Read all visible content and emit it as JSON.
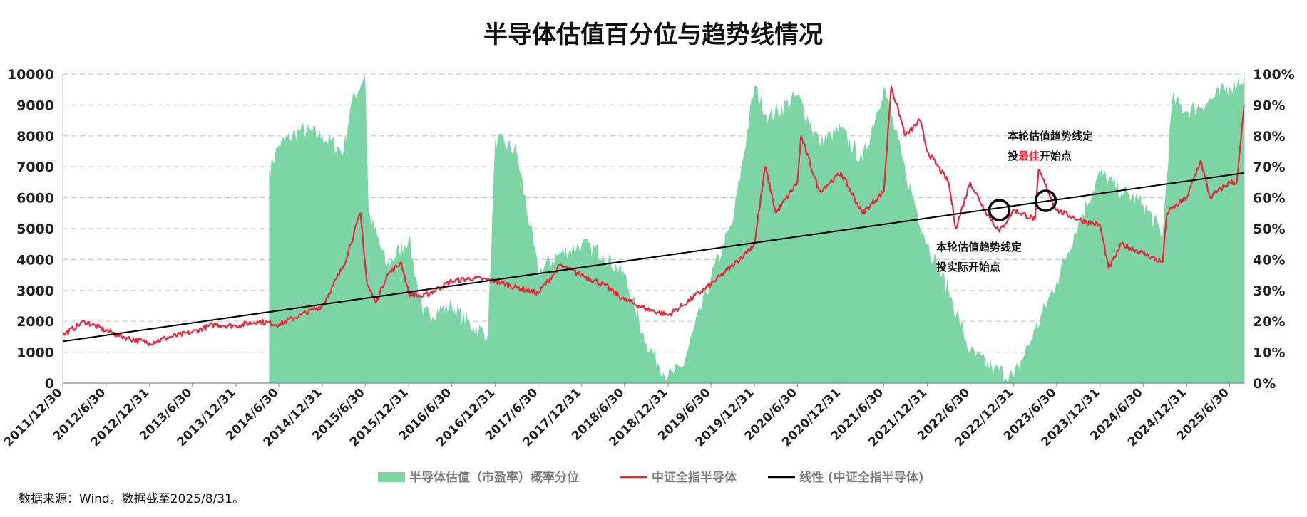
{
  "chart_data": {
    "type": "area",
    "title": "半导体估值百分位与趋势线情况",
    "source": "数据来源：Wind，数据截至2025/8/31。",
    "left_axis": {
      "ylim": [
        0,
        10000
      ],
      "ticks": [
        "0",
        "1000",
        "2000",
        "3000",
        "4000",
        "5000",
        "6000",
        "7000",
        "8000",
        "9000",
        "10000"
      ]
    },
    "right_axis": {
      "ylim": [
        0,
        1
      ],
      "ticks": [
        "0%",
        "10%",
        "20%",
        "30%",
        "40%",
        "50%",
        "60%",
        "70%",
        "80%",
        "90%",
        "100%"
      ]
    },
    "x_range": [
      "2011/12/30",
      "2025/8/31"
    ],
    "x_ticks": [
      "2011/12/30",
      "2012/6/30",
      "2012/12/31",
      "2013/6/30",
      "2013/12/31",
      "2014/6/30",
      "2014/12/31",
      "2015/6/30",
      "2015/12/31",
      "2016/6/30",
      "2016/12/31",
      "2017/6/30",
      "2017/12/31",
      "2018/6/30",
      "2018/12/31",
      "2019/6/30",
      "2019/12/31",
      "2020/6/30",
      "2020/12/31",
      "2021/6/30",
      "2021/12/31",
      "2022/6/30",
      "2022/12/31",
      "2023/6/30",
      "2023/12/31",
      "2024/6/30",
      "2024/12/31",
      "2025/6/30"
    ],
    "grid": "horizontal dashed",
    "legend_position": "bottom",
    "series": [
      {
        "name": "半导体估值（市盈率）概率分位",
        "axis": "right",
        "type": "area",
        "color": "#7dd5a6",
        "x": [
          "2014/5/20",
          "2014/6/30",
          "2014/9/30",
          "2014/12/31",
          "2015/3/31",
          "2015/4/30",
          "2015/6/30",
          "2015/7/15",
          "2015/9/30",
          "2015/12/31",
          "2016/2/29",
          "2016/6/30",
          "2016/9/30",
          "2016/11/30",
          "2016/12/31",
          "2017/3/31",
          "2017/6/30",
          "2017/9/30",
          "2017/12/31",
          "2018/3/31",
          "2018/6/30",
          "2018/9/30",
          "2018/12/31",
          "2019/2/28",
          "2019/6/30",
          "2019/9/30",
          "2019/12/31",
          "2020/2/29",
          "2020/6/30",
          "2020/9/30",
          "2020/12/31",
          "2021/3/31",
          "2021/6/30",
          "2021/9/30",
          "2021/12/31",
          "2022/3/31",
          "2022/6/30",
          "2022/9/30",
          "2022/12/31",
          "2023/3/31",
          "2023/6/30",
          "2023/9/30",
          "2023/12/31",
          "2024/3/31",
          "2024/6/30",
          "2024/9/20",
          "2024/10/31",
          "2024/12/31",
          "2025/3/31",
          "2025/6/30",
          "2025/8/31"
        ],
        "values": [
          0.69,
          0.77,
          0.82,
          0.8,
          0.75,
          0.9,
          1.0,
          0.55,
          0.38,
          0.47,
          0.22,
          0.25,
          0.18,
          0.16,
          0.79,
          0.75,
          0.36,
          0.42,
          0.45,
          0.42,
          0.35,
          0.13,
          0.02,
          0.05,
          0.34,
          0.52,
          0.96,
          0.86,
          0.93,
          0.78,
          0.82,
          0.72,
          0.96,
          0.68,
          0.45,
          0.3,
          0.1,
          0.05,
          0.02,
          0.17,
          0.33,
          0.52,
          0.68,
          0.62,
          0.58,
          0.48,
          0.92,
          0.88,
          0.91,
          0.96,
          0.99
        ]
      },
      {
        "name": "中证全指半导体",
        "axis": "left",
        "type": "line",
        "color": "#e8283c",
        "x": [
          "2011/12/30",
          "2012/3/31",
          "2012/6/30",
          "2012/9/30",
          "2012/12/31",
          "2013/3/31",
          "2013/6/30",
          "2013/9/30",
          "2013/12/31",
          "2014/3/31",
          "2014/6/30",
          "2014/9/30",
          "2014/12/31",
          "2015/3/31",
          "2015/6/10",
          "2015/7/8",
          "2015/8/15",
          "2015/9/30",
          "2015/11/30",
          "2015/12/31",
          "2016/2/29",
          "2016/6/30",
          "2016/9/30",
          "2016/12/31",
          "2017/3/31",
          "2017/6/30",
          "2017/9/30",
          "2017/12/31",
          "2018/3/31",
          "2018/6/30",
          "2018/9/30",
          "2018/12/31",
          "2019/2/28",
          "2019/6/30",
          "2019/9/30",
          "2019/12/31",
          "2020/2/15",
          "2020/3/31",
          "2020/6/30",
          "2020/7/15",
          "2020/9/30",
          "2020/12/31",
          "2021/3/31",
          "2021/6/30",
          "2021/7/31",
          "2021/9/30",
          "2021/11/30",
          "2021/12/31",
          "2022/3/31",
          "2022/4/30",
          "2022/6/30",
          "2022/8/31",
          "2022/10/31",
          "2022/12/31",
          "2023/3/31",
          "2023/4/15",
          "2023/6/30",
          "2023/9/30",
          "2023/12/31",
          "2024/2/5",
          "2024/3/31",
          "2024/6/30",
          "2024/9/20",
          "2024/10/8",
          "2024/12/31",
          "2025/2/28",
          "2025/4/8",
          "2025/6/30",
          "2025/7/31",
          "2025/8/31"
        ],
        "values": [
          1550,
          2000,
          1700,
          1450,
          1300,
          1500,
          1650,
          1900,
          1850,
          2000,
          1900,
          2200,
          2500,
          3800,
          5500,
          3200,
          2600,
          3500,
          3900,
          2900,
          2800,
          3300,
          3400,
          3300,
          3100,
          2900,
          3800,
          3500,
          3200,
          2700,
          2400,
          2200,
          2500,
          3200,
          3800,
          4500,
          7000,
          5500,
          6500,
          8000,
          6200,
          6800,
          5500,
          6200,
          9600,
          8000,
          8500,
          7500,
          6500,
          5000,
          6500,
          5600,
          4900,
          5600,
          5300,
          6900,
          5600,
          5300,
          5100,
          3700,
          4500,
          4200,
          3900,
          5500,
          6000,
          7200,
          6000,
          6500,
          6500,
          9000
        ]
      },
      {
        "name": "线性 (中证全指半导体)",
        "axis": "left",
        "type": "line",
        "color": "#000000",
        "x": [
          "2011/12/30",
          "2025/8/31"
        ],
        "values": [
          1350,
          6800
        ]
      }
    ],
    "annotations": [
      {
        "lines": [
          [
            {
              "text": "本轮估值趋势线定",
              "red": false
            }
          ],
          [
            {
              "text": "投实际开始点",
              "red": false
            }
          ]
        ],
        "marker_x": "2022/10/31",
        "marker_value": 5600
      },
      {
        "lines": [
          [
            {
              "text": "本轮估值趋势线定",
              "red": false
            }
          ],
          [
            {
              "text": "投",
              "red": false
            },
            {
              "text": "最佳",
              "red": true
            },
            {
              "text": "开始点",
              "red": false
            }
          ]
        ],
        "marker_x": "2023/5/15",
        "marker_value": 5900
      }
    ]
  }
}
